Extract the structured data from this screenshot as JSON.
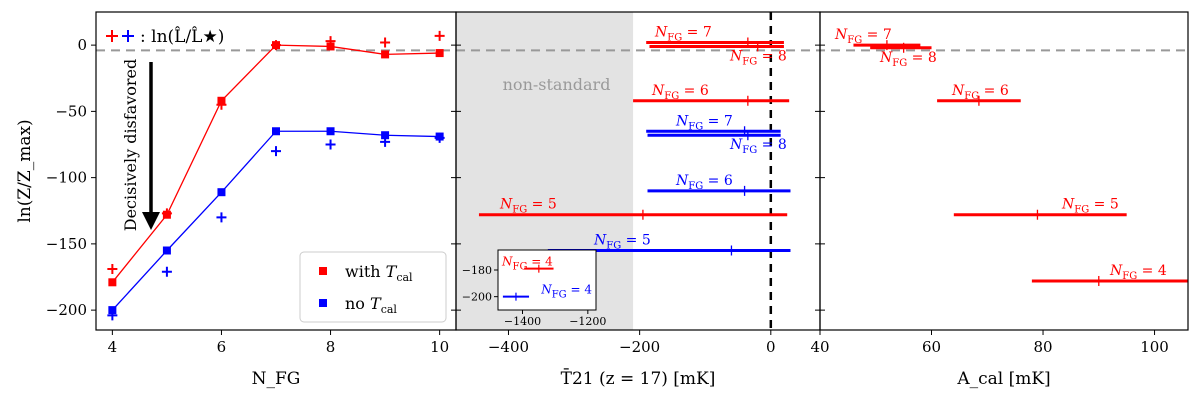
{
  "chart_data": [
    {
      "type": "line",
      "panel": "evidence",
      "xlabel": "N_FG",
      "ylabel": "ln(Z/Z_max)",
      "xlim": [
        3.7,
        10.3
      ],
      "ylim": [
        -215,
        25
      ],
      "xticks": [
        "4",
        "6",
        "8",
        "10"
      ],
      "yticks": [
        "0",
        "−50",
        "−100",
        "−150",
        "−200"
      ],
      "reference_line_y": -4,
      "x": [
        4,
        5,
        6,
        7,
        8,
        9,
        10
      ],
      "series": [
        {
          "name": "with T_cal",
          "legend": "with ",
          "sub": "cal",
          "color": "#ff0000",
          "values": [
            -179,
            -128,
            -42,
            0,
            -1,
            -7,
            -6
          ],
          "plus_values": [
            -169,
            -127,
            -45,
            0,
            3,
            2,
            7
          ]
        },
        {
          "name": "no T_cal",
          "legend": "no ",
          "sub": "cal",
          "color": "#0000ff",
          "values": [
            -200,
            -155,
            -111,
            -65,
            -65,
            -68,
            -69
          ],
          "plus_values": [
            -204,
            -171,
            -130,
            -80,
            -75,
            -73,
            -70
          ]
        }
      ],
      "plus_legend": ": ln(L̂/L̂★)",
      "annotation": "Decisively disfavored"
    },
    {
      "type": "errorbar",
      "panel": "T21",
      "xlabel": "T̄21 (z = 17) [mK]",
      "xlim": [
        -480,
        75
      ],
      "xticks": [
        "−400",
        "−200",
        "0"
      ],
      "shaded_region": {
        "from": -480,
        "to": -210,
        "label": "non-standard"
      },
      "zero_line_x": 0,
      "rows": [
        {
          "label": "N_FG = 7",
          "y": 2,
          "low": -190,
          "high": 20,
          "center": -35,
          "color": "#ff0000"
        },
        {
          "label": "N_FG = 8",
          "y": -1,
          "low": -185,
          "high": 20,
          "center": -20,
          "color": "#ff0000"
        },
        {
          "label": "N_FG = 6",
          "y": -42,
          "low": -210,
          "high": 28,
          "center": -35,
          "color": "#ff0000"
        },
        {
          "label": "N_FG = 7",
          "y": -65,
          "low": -190,
          "high": 15,
          "center": -40,
          "color": "#0000ff"
        },
        {
          "label": "N_FG = 8",
          "y": -68,
          "low": -188,
          "high": 15,
          "center": -35,
          "color": "#0000ff"
        },
        {
          "label": "N_FG = 6",
          "y": -110,
          "low": -188,
          "high": 30,
          "center": -40,
          "color": "#0000ff"
        },
        {
          "label": "N_FG = 5",
          "y": -128,
          "low": -445,
          "high": 25,
          "center": -195,
          "color": "#ff0000"
        },
        {
          "label": "N_FG = 5",
          "y": -155,
          "low": -340,
          "high": 30,
          "center": -60,
          "color": "#0000ff"
        }
      ],
      "inset": {
        "xlim": [
          -1475,
          -1175
        ],
        "ylim": [
          -210,
          -165
        ],
        "xticks": [
          "−1400",
          "−1200"
        ],
        "yticks": [
          "−180",
          "−200"
        ],
        "rows": [
          {
            "label": "N_FG = 4",
            "y": -179,
            "low": -1395,
            "high": -1305,
            "center": -1350,
            "color": "#ff0000"
          },
          {
            "label": "N_FG = 4",
            "y": -200,
            "low": -1460,
            "high": -1380,
            "center": -1420,
            "color": "#0000ff"
          }
        ]
      }
    },
    {
      "type": "errorbar",
      "panel": "Acal",
      "xlabel": "A_cal [mK]",
      "xlim": [
        40,
        106
      ],
      "xticks": [
        "40",
        "60",
        "80",
        "100"
      ],
      "rows": [
        {
          "label": "N_FG = 7",
          "y": 0,
          "low": 46,
          "high": 58,
          "center": 52,
          "color": "#ff0000"
        },
        {
          "label": "N_FG = 8",
          "y": -2,
          "low": 49,
          "high": 60,
          "center": 55,
          "color": "#ff0000"
        },
        {
          "label": "N_FG = 6",
          "y": -42,
          "low": 61,
          "high": 76,
          "center": 68.5,
          "color": "#ff0000"
        },
        {
          "label": "N_FG = 5",
          "y": -128,
          "low": 64,
          "high": 95,
          "center": 79,
          "color": "#ff0000"
        },
        {
          "label": "N_FG = 4",
          "y": -178,
          "low": 78,
          "high": 106,
          "center": 90,
          "color": "#ff0000"
        }
      ]
    }
  ]
}
